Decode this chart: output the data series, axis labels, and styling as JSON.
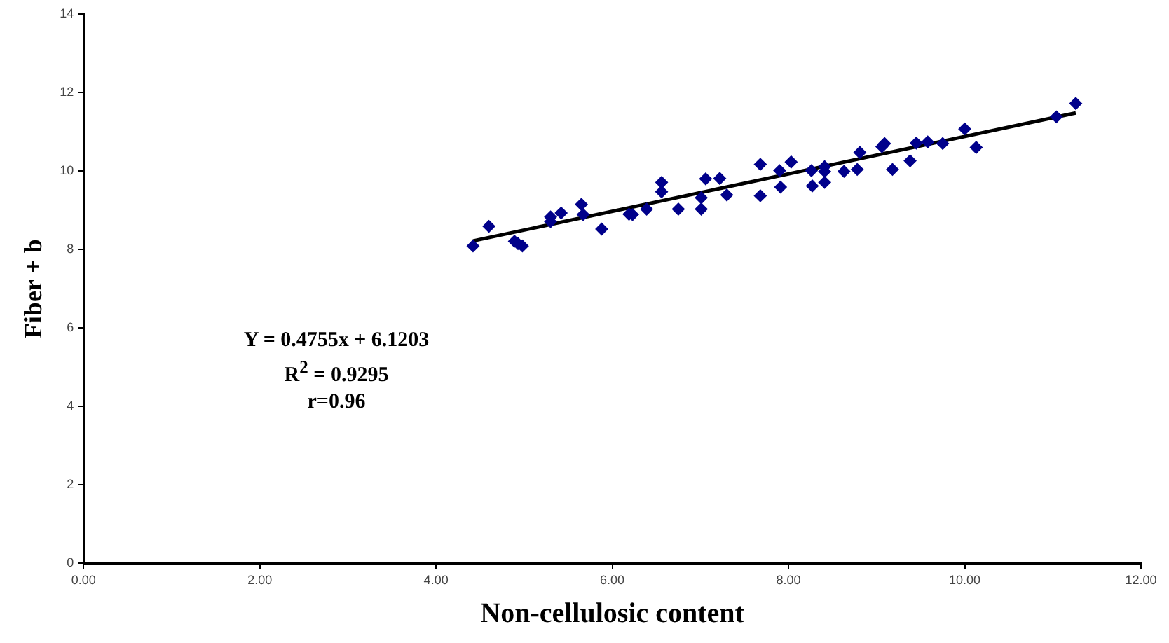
{
  "chart_data": {
    "type": "scatter",
    "xlabel": "Non-cellulosic content",
    "ylabel": "Fiber + b",
    "xlim": [
      0,
      12
    ],
    "ylim": [
      0,
      14
    ],
    "xticks": [
      {
        "value": 0,
        "label": "0.00"
      },
      {
        "value": 2,
        "label": "2.00"
      },
      {
        "value": 4,
        "label": "4.00"
      },
      {
        "value": 6,
        "label": "6.00"
      },
      {
        "value": 8,
        "label": "8.00"
      },
      {
        "value": 10,
        "label": "10.00"
      },
      {
        "value": 12,
        "label": "12.00"
      }
    ],
    "yticks": [
      0,
      2,
      4,
      6,
      8,
      10,
      12,
      14
    ],
    "grid": false,
    "legend": false,
    "marker": "diamond",
    "annotations": [
      "Y = 0.4755x  + 6.1203",
      "R$^{2}$ = 0.9295",
      "r=0.96"
    ],
    "series": [
      {
        "color": "#00008b",
        "x": [
          4.42,
          4.6,
          4.89,
          4.93,
          4.98,
          5.3,
          5.3,
          5.42,
          5.65,
          5.67,
          5.88,
          6.19,
          6.23,
          6.39,
          6.56,
          6.56,
          6.75,
          7.01,
          7.01,
          7.06,
          7.22,
          7.3,
          7.68,
          7.68,
          7.9,
          7.91,
          8.03,
          8.26,
          8.27,
          8.41,
          8.41,
          8.41,
          8.63,
          8.78,
          8.81,
          9.06,
          9.09,
          9.18,
          9.38,
          9.45,
          9.58,
          9.75,
          10.0,
          10.13,
          11.04,
          11.26
        ],
        "values": [
          8.09,
          8.59,
          8.21,
          8.15,
          8.09,
          8.83,
          8.71,
          8.93,
          9.15,
          8.89,
          8.52,
          8.9,
          8.89,
          9.03,
          9.71,
          9.47,
          9.03,
          9.32,
          9.03,
          9.8,
          9.81,
          9.39,
          10.17,
          9.37,
          10.01,
          9.59,
          10.23,
          10.01,
          9.62,
          10.11,
          9.99,
          9.71,
          9.99,
          10.04,
          10.47,
          10.62,
          10.7,
          10.04,
          10.26,
          10.71,
          10.74,
          10.7,
          11.07,
          10.6,
          11.38,
          11.72
        ]
      },
      {
        "type": "line",
        "color": "#000000",
        "marker": "none",
        "line_style": "solid",
        "x": [
          4.42,
          11.26
        ],
        "values": [
          8.22,
          11.48
        ]
      }
    ]
  }
}
